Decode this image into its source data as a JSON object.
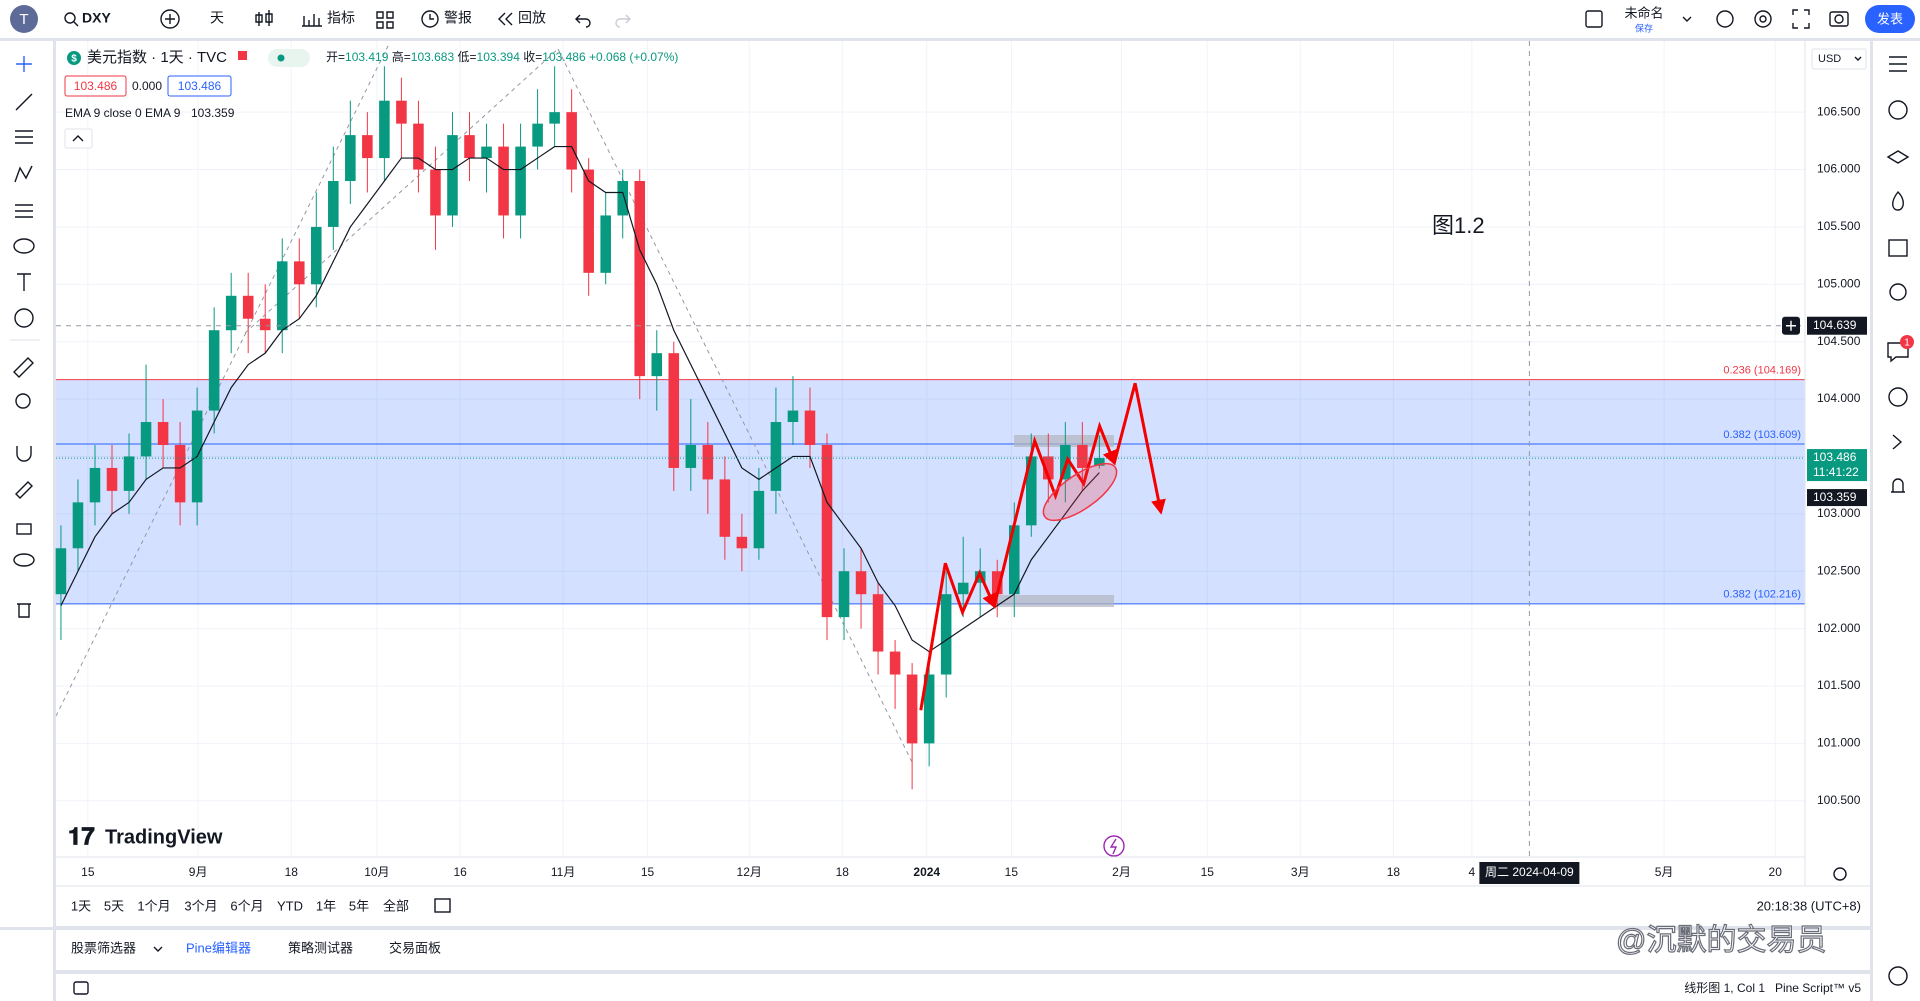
{
  "toolbar": {
    "avatar": "T",
    "symbol": "DXY",
    "interval": "天",
    "indicators": "指标",
    "alert": "警报",
    "replay": "回放",
    "layout_name": "未命名",
    "save": "保存",
    "publish": "发表"
  },
  "legend": {
    "title": "美元指数 · 1天 · TVC",
    "open_label": "开=",
    "high_label": "高=",
    "low_label": "低=",
    "close_label": "收=",
    "change": "+0.068 (+0.07%)",
    "bid": "103.486",
    "spread": "0.000",
    "ask": "103.486",
    "ema_label": "EMA 9 close 0 EMA 9"
  },
  "currency": "USD",
  "annotation": "图1.2",
  "watermark": "TradingView",
  "notification_count": 1,
  "chart_data": {
    "type": "candlestick",
    "x": [
      0,
      1,
      2,
      3,
      4,
      5,
      6,
      7,
      8,
      9,
      10,
      11,
      12,
      13,
      14,
      15,
      16,
      17,
      18,
      19,
      20,
      21,
      22,
      23,
      24,
      25,
      26,
      27,
      28,
      29,
      30,
      31,
      32,
      33,
      34,
      35,
      36,
      37,
      38,
      39,
      40,
      41,
      42,
      43,
      44,
      45,
      46,
      47,
      48,
      49,
      50,
      51,
      52,
      53,
      54,
      55,
      56,
      57,
      58,
      59,
      60,
      61
    ],
    "open": [
      102.3,
      102.7,
      103.1,
      103.4,
      103.2,
      103.5,
      103.8,
      103.6,
      103.1,
      103.9,
      104.6,
      104.9,
      104.7,
      104.6,
      105.2,
      105.0,
      105.5,
      105.9,
      106.3,
      106.1,
      106.6,
      106.4,
      106.0,
      105.6,
      106.3,
      106.1,
      106.2,
      105.6,
      106.2,
      106.4,
      106.5,
      106.0,
      105.1,
      105.6,
      105.9,
      104.2,
      104.4,
      103.4,
      103.6,
      103.3,
      102.8,
      102.7,
      103.2,
      103.8,
      103.9,
      103.6,
      102.1,
      102.5,
      102.3,
      101.8,
      101.6,
      101.0,
      101.6,
      102.3,
      102.4,
      102.5,
      102.3,
      102.9,
      103.5,
      103.3,
      103.6,
      103.419
    ],
    "high": [
      102.9,
      103.3,
      103.6,
      103.6,
      103.7,
      104.3,
      104.0,
      103.8,
      104.1,
      104.8,
      105.1,
      105.1,
      105.0,
      105.4,
      105.4,
      105.8,
      106.2,
      106.6,
      106.5,
      106.9,
      106.8,
      106.6,
      106.2,
      106.5,
      106.5,
      106.4,
      106.4,
      106.4,
      106.7,
      106.9,
      106.7,
      106.1,
      105.8,
      106.0,
      106.0,
      104.6,
      104.5,
      104.0,
      103.8,
      103.5,
      103.0,
      103.4,
      104.1,
      104.2,
      104.1,
      103.7,
      102.7,
      102.7,
      102.4,
      101.9,
      101.7,
      101.8,
      102.5,
      102.8,
      102.7,
      102.6,
      103.1,
      103.7,
      103.7,
      103.8,
      103.8,
      103.683
    ],
    "low": [
      101.9,
      102.5,
      102.9,
      103.0,
      103.0,
      103.3,
      103.4,
      102.9,
      102.9,
      103.7,
      104.4,
      104.4,
      104.4,
      104.4,
      104.7,
      104.8,
      105.3,
      105.7,
      105.8,
      105.9,
      106.1,
      105.8,
      105.3,
      105.5,
      105.9,
      105.8,
      105.4,
      105.4,
      106.0,
      106.2,
      105.8,
      104.9,
      105.0,
      105.4,
      104.0,
      103.9,
      103.2,
      103.2,
      103.0,
      102.6,
      102.5,
      102.6,
      103.0,
      103.6,
      103.4,
      101.9,
      101.9,
      102.0,
      101.6,
      101.3,
      100.6,
      100.8,
      101.4,
      102.1,
      102.1,
      102.1,
      102.1,
      102.8,
      103.1,
      103.1,
      103.2,
      103.394
    ],
    "close": [
      102.7,
      103.1,
      103.4,
      103.2,
      103.5,
      103.8,
      103.6,
      103.1,
      103.9,
      104.6,
      104.9,
      104.7,
      104.6,
      105.2,
      105.0,
      105.5,
      105.9,
      106.3,
      106.1,
      106.6,
      106.4,
      106.0,
      105.6,
      106.3,
      106.1,
      106.2,
      105.6,
      106.2,
      106.4,
      106.5,
      106.0,
      105.1,
      105.6,
      105.9,
      104.2,
      104.4,
      103.4,
      103.6,
      103.3,
      102.8,
      102.7,
      103.2,
      103.8,
      103.9,
      103.6,
      102.1,
      102.5,
      102.3,
      101.8,
      101.6,
      101.0,
      101.6,
      102.3,
      102.4,
      102.5,
      102.3,
      102.9,
      103.5,
      103.3,
      103.6,
      103.4,
      103.486
    ],
    "up_color": "#089981",
    "down_color": "#f23645",
    "ema_values": [
      102.2,
      102.5,
      102.8,
      103.0,
      103.1,
      103.3,
      103.4,
      103.4,
      103.5,
      103.8,
      104.1,
      104.3,
      104.4,
      104.6,
      104.7,
      104.9,
      105.2,
      105.5,
      105.7,
      105.9,
      106.1,
      106.1,
      106.0,
      106.0,
      106.1,
      106.1,
      106.0,
      106.0,
      106.1,
      106.2,
      106.2,
      105.9,
      105.8,
      105.8,
      105.3,
      105.0,
      104.6,
      104.3,
      104.0,
      103.7,
      103.4,
      103.3,
      103.4,
      103.5,
      103.5,
      103.1,
      102.9,
      102.7,
      102.4,
      102.2,
      101.9,
      101.8,
      101.9,
      102.0,
      102.1,
      102.2,
      102.3,
      102.6,
      102.8,
      103.0,
      103.2,
      103.359
    ],
    "ema_color": "#131722",
    "levels": [
      {
        "label": "0.236 (104.169)",
        "value": 104.169,
        "color": "#f23645"
      },
      {
        "label": "0.382 (103.609)",
        "value": 103.609,
        "color": "#2962ff"
      },
      {
        "label": "0.382 (102.216)",
        "value": 102.216,
        "color": "#2962ff"
      }
    ],
    "zone_color": "rgba(41,98,255,0.2)",
    "countdown": "11:41:22",
    "crosshair": {
      "price": 104.639,
      "x": 86.26,
      "date_label": "周二 2024-04-09"
    },
    "xlim": [
      -0.29,
      102.45
    ],
    "ylim": [
      100.01,
      107.12
    ],
    "xticks": [
      {
        "value": 1.58,
        "label": "15"
      },
      {
        "value": 8.06,
        "label": "9月"
      },
      {
        "value": 13.53,
        "label": "18"
      },
      {
        "value": 18.56,
        "label": "10月"
      },
      {
        "value": 23.45,
        "label": "16"
      },
      {
        "value": 29.5,
        "label": "11月"
      },
      {
        "value": 34.46,
        "label": "15"
      },
      {
        "value": 40.43,
        "label": "12月"
      },
      {
        "value": 45.9,
        "label": "18"
      },
      {
        "value": 50.86,
        "label": "2024"
      },
      {
        "value": 55.83,
        "label": "15"
      },
      {
        "value": 62.3,
        "label": "2月"
      },
      {
        "value": 67.34,
        "label": "15"
      },
      {
        "value": 72.8,
        "label": "3月"
      },
      {
        "value": 78.27,
        "label": "18"
      },
      {
        "value": 82.88,
        "label": "4"
      },
      {
        "value": 94.17,
        "label": "5月"
      },
      {
        "value": 100.7,
        "label": "20"
      }
    ],
    "yticks": [
      {
        "value": 100.5,
        "label": "100.500"
      },
      {
        "value": 101,
        "label": "101.000"
      },
      {
        "value": 101.5,
        "label": "101.500"
      },
      {
        "value": 102,
        "label": "102.000"
      },
      {
        "value": 102.5,
        "label": "102.500"
      },
      {
        "value": 103,
        "label": "103.000"
      },
      {
        "value": 103.5,
        "label": "103.500"
      },
      {
        "value": 104,
        "label": "104.000"
      },
      {
        "value": 104.5,
        "label": "104.500"
      },
      {
        "value": 105,
        "label": "105.000"
      },
      {
        "value": 105.5,
        "label": "105.500"
      },
      {
        "value": 106,
        "label": "106.000"
      },
      {
        "value": 106.5,
        "label": "106.500"
      }
    ],
    "grid": true
  },
  "range_buttons": [
    "1天",
    "5天",
    "1个月",
    "3个月",
    "6个月",
    "YTD",
    "1年",
    "5年",
    "全部"
  ],
  "clock": "20:18:38 (UTC+8)",
  "tabs": [
    "股票筛选器",
    "Pine编辑器",
    "策略测试器",
    "交易面板"
  ],
  "status": [
    "线形图 1, Col 1",
    "Pine Script™ v5"
  ],
  "author_watermark": "@沉默的交易员"
}
